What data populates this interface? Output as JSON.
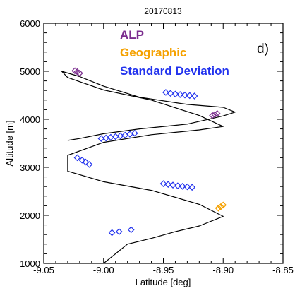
{
  "chart_data": {
    "type": "line",
    "title": "20170813",
    "panel_label": "d)",
    "xlabel": "Latitude [deg]",
    "ylabel": "Altitude [m]",
    "xlim": [
      -9.05,
      -8.85
    ],
    "ylim": [
      1000,
      6000
    ],
    "xticks": [
      "-9.05",
      "-9.00",
      "-8.95",
      "-8.90",
      "-8.85"
    ],
    "yticks": [
      "1000",
      "2000",
      "3000",
      "4000",
      "5000",
      "6000"
    ],
    "legend_position": "top-center",
    "grid": false,
    "series": [
      {
        "name": "",
        "style": "line",
        "color": "#000000",
        "x": [
          -9.0,
          -8.98,
          -8.96,
          -8.94,
          -8.92,
          -8.9,
          -8.92,
          -8.96,
          -9.0,
          -9.03,
          -9.03,
          -9.0,
          -8.96,
          -8.92,
          -8.9,
          -8.92,
          -8.96,
          -9.0,
          -9.03,
          -9.035,
          -9.02,
          -9.0,
          -8.97,
          -8.93,
          -8.9,
          -8.89,
          -8.9,
          -8.93,
          -8.97,
          -9.0,
          -9.02,
          -9.03
        ],
        "y": [
          1000,
          1400,
          1520,
          1660,
          1780,
          1980,
          2230,
          2520,
          2700,
          2920,
          3250,
          3520,
          3680,
          3780,
          3850,
          4080,
          4400,
          4610,
          4870,
          5000,
          4890,
          4690,
          4460,
          4310,
          4250,
          4150,
          4070,
          3900,
          3800,
          3700,
          3600,
          3560
        ]
      },
      {
        "name": "ALP",
        "style": "markers",
        "color": "#7b2d8e",
        "x": [
          -9.024,
          -9.022,
          -9.02,
          -8.909,
          -8.907,
          -8.905
        ],
        "y": [
          5010,
          4990,
          4960,
          4080,
          4100,
          4120
        ]
      },
      {
        "name": "Geographic",
        "style": "markers",
        "color": "#f5a100",
        "x": [
          -8.904,
          -8.902,
          -8.9
        ],
        "y": [
          2150,
          2180,
          2215
        ]
      },
      {
        "name": "Standard Deviation",
        "style": "markers",
        "color": "#2233ee",
        "x": [
          -8.948,
          -8.944,
          -8.94,
          -8.936,
          -8.932,
          -8.928,
          -8.924,
          -9.002,
          -8.998,
          -8.994,
          -8.99,
          -8.986,
          -8.982,
          -8.978,
          -8.974,
          -9.022,
          -9.018,
          -9.015,
          -9.012,
          -8.95,
          -8.946,
          -8.942,
          -8.938,
          -8.934,
          -8.93,
          -8.926,
          -8.993,
          -8.987,
          -8.977
        ],
        "y": [
          4560,
          4540,
          4525,
          4515,
          4505,
          4495,
          4485,
          3600,
          3610,
          3625,
          3640,
          3655,
          3670,
          3690,
          3710,
          3200,
          3150,
          3110,
          3060,
          2660,
          2645,
          2630,
          2615,
          2605,
          2595,
          2585,
          1640,
          1660,
          1700
        ]
      }
    ]
  }
}
